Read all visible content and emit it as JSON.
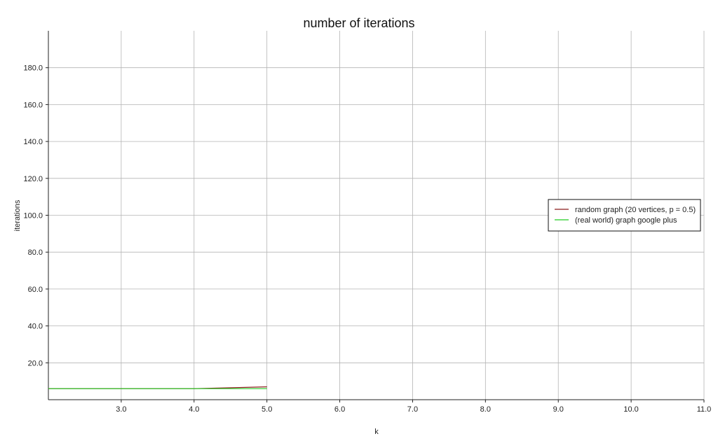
{
  "chart_data": {
    "type": "line",
    "title": "number of iterations",
    "xlabel": "k",
    "ylabel": "iterations",
    "xlim": [
      2.0,
      11.0
    ],
    "ylim": [
      0,
      200
    ],
    "xticks": [
      3.0,
      4.0,
      5.0,
      6.0,
      7.0,
      8.0,
      9.0,
      10.0,
      11.0
    ],
    "yticks": [
      20.0,
      40.0,
      60.0,
      80.0,
      100.0,
      120.0,
      140.0,
      160.0,
      180.0
    ],
    "xtick_labels": [
      "3.0",
      "4.0",
      "5.0",
      "6.0",
      "7.0",
      "8.0",
      "9.0",
      "10.0",
      "11.0"
    ],
    "ytick_labels": [
      "20.0",
      "40.0",
      "60.0",
      "80.0",
      "100.0",
      "120.0",
      "140.0",
      "160.0",
      "180.0"
    ],
    "grid": true,
    "legend_position": "right",
    "series": [
      {
        "name": "random graph (20 vertices, p = 0.5)",
        "color": "#8b1a1a",
        "x": [
          2,
          3,
          4,
          5
        ],
        "y": [
          6,
          6,
          6,
          7
        ]
      },
      {
        "name": "(real world) graph google plus",
        "color": "#22cc22",
        "x": [
          2,
          3,
          4,
          5
        ],
        "y": [
          6,
          6,
          6,
          6
        ]
      }
    ]
  }
}
